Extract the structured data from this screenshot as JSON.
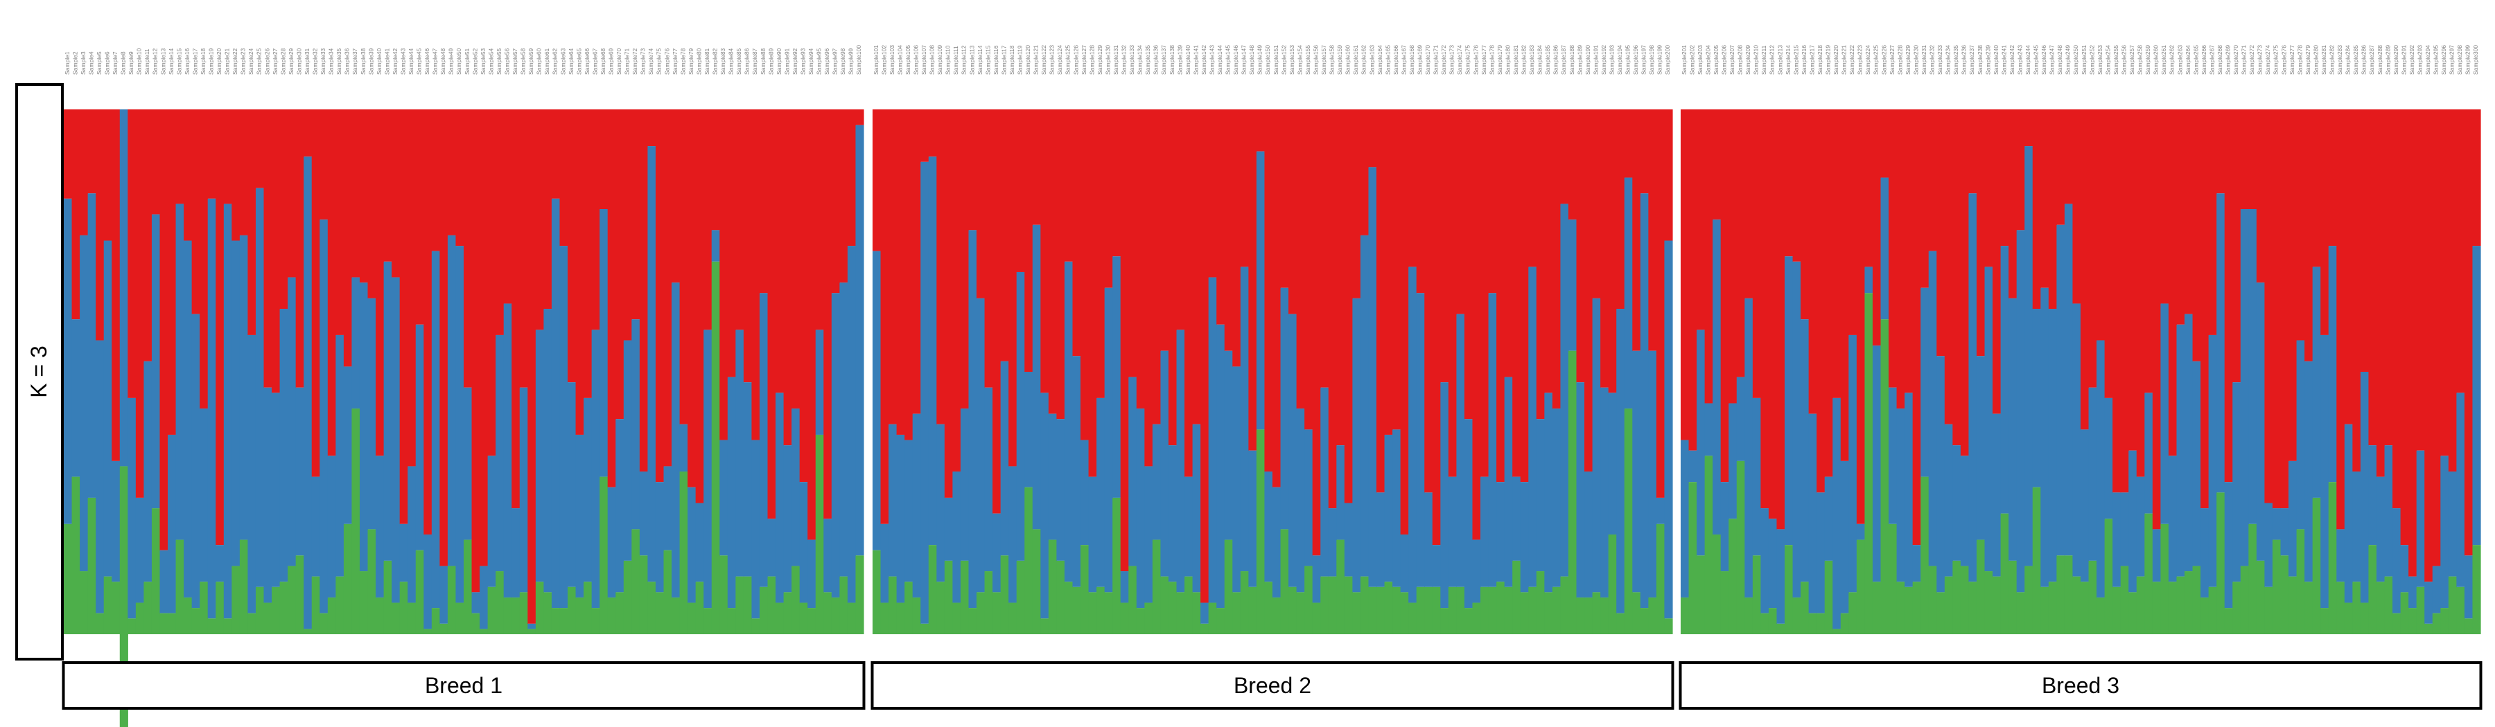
{
  "chart_data": {
    "type": "bar",
    "stacked": true,
    "row_label": "K = 3",
    "ylim": [
      0,
      1
    ],
    "grid": false,
    "components": [
      {
        "name": "",
        "color": "#4DAF4A"
      },
      {
        "name": "",
        "color": "#377EB8"
      },
      {
        "name": "",
        "color": "#E41A1C"
      }
    ],
    "panels": [
      {
        "label": "Breed 1",
        "samples": [
          "Sample1",
          "Sample2",
          "Sample3",
          "Sample4",
          "Sample5",
          "Sample6",
          "Sample7",
          "Sample8",
          "Sample9",
          "Sample10",
          "Sample11",
          "Sample12",
          "Sample13",
          "Sample14",
          "Sample15",
          "Sample16",
          "Sample17",
          "Sample18",
          "Sample19",
          "Sample20",
          "Sample21",
          "Sample22",
          "Sample23",
          "Sample24",
          "Sample25",
          "Sample26",
          "Sample27",
          "Sample28",
          "Sample29",
          "Sample30",
          "Sample31",
          "Sample32",
          "Sample33",
          "Sample34",
          "Sample35",
          "Sample36",
          "Sample37",
          "Sample38",
          "Sample39",
          "Sample40",
          "Sample41",
          "Sample42",
          "Sample43",
          "Sample44",
          "Sample45",
          "Sample46",
          "Sample47",
          "Sample48",
          "Sample49",
          "Sample50",
          "Sample51",
          "Sample52",
          "Sample53",
          "Sample54",
          "Sample55",
          "Sample56",
          "Sample57",
          "Sample58",
          "Sample59",
          "Sample60",
          "Sample61",
          "Sample62",
          "Sample63",
          "Sample64",
          "Sample65",
          "Sample66",
          "Sample67",
          "Sample68",
          "Sample69",
          "Sample70",
          "Sample71",
          "Sample72",
          "Sample73",
          "Sample74",
          "Sample75",
          "Sample76",
          "Sample77",
          "Sample78",
          "Sample79",
          "Sample80",
          "Sample81",
          "Sample82",
          "Sample83",
          "Sample84",
          "Sample85",
          "Sample86",
          "Sample87",
          "Sample88",
          "Sample89",
          "Sample90",
          "Sample91",
          "Sample92",
          "Sample93",
          "Sample94",
          "Sample95",
          "Sample96",
          "Sample97",
          "Sample98",
          "Sample99",
          "Sample100"
        ],
        "green": [
          0.21,
          0.3,
          0.12,
          0.26,
          0.04,
          0.11,
          0.1,
          0.55,
          0.03,
          0.06,
          0.1,
          0.24,
          0.04,
          0.04,
          0.18,
          0.07,
          0.05,
          0.1,
          0.03,
          0.1,
          0.03,
          0.13,
          0.18,
          0.04,
          0.09,
          0.06,
          0.09,
          0.1,
          0.13,
          0.15,
          0.01,
          0.11,
          0.04,
          0.07,
          0.11,
          0.21,
          0.43,
          0.12,
          0.2,
          0.07,
          0.14,
          0.06,
          0.1,
          0.06,
          0.16,
          0.01,
          0.05,
          0.02,
          0.13,
          0.06,
          0.18,
          0.04,
          0.01,
          0.09,
          0.12,
          0.07,
          0.07,
          0.08,
          0.01,
          0.1,
          0.08,
          0.05,
          0.05,
          0.09,
          0.07,
          0.1,
          0.05,
          0.3,
          0.07,
          0.08,
          0.14,
          0.2,
          0.15,
          0.1,
          0.08,
          0.16,
          0.07,
          0.31,
          0.06,
          0.1,
          0.05,
          0.71,
          0.15,
          0.05,
          0.11,
          0.11,
          0.03,
          0.09,
          0.11,
          0.06,
          0.08,
          0.13,
          0.06,
          0.05,
          0.38,
          0.08,
          0.07,
          0.11,
          0.06,
          0.15
        ],
        "blue": [
          0.62,
          0.3,
          0.64,
          0.58,
          0.52,
          0.64,
          0.23,
          0.68,
          0.42,
          0.2,
          0.42,
          0.56,
          0.12,
          0.34,
          0.64,
          0.68,
          0.56,
          0.33,
          0.8,
          0.07,
          0.79,
          0.62,
          0.58,
          0.53,
          0.76,
          0.41,
          0.37,
          0.52,
          0.55,
          0.32,
          0.9,
          0.19,
          0.75,
          0.27,
          0.46,
          0.3,
          0.25,
          0.55,
          0.44,
          0.27,
          0.57,
          0.62,
          0.11,
          0.26,
          0.43,
          0.18,
          0.68,
          0.11,
          0.63,
          0.68,
          0.29,
          0.04,
          0.12,
          0.25,
          0.45,
          0.56,
          0.17,
          0.39,
          0.01,
          0.48,
          0.54,
          0.78,
          0.69,
          0.39,
          0.31,
          0.35,
          0.53,
          0.51,
          0.21,
          0.33,
          0.42,
          0.4,
          0.16,
          0.83,
          0.21,
          0.16,
          0.6,
          0.09,
          0.22,
          0.15,
          0.53,
          0.06,
          0.22,
          0.44,
          0.47,
          0.37,
          0.34,
          0.56,
          0.11,
          0.4,
          0.28,
          0.3,
          0.23,
          0.13,
          0.2,
          0.14,
          0.58,
          0.56,
          0.68,
          0.82
        ]
      },
      {
        "label": "Breed 2",
        "samples": [
          "Sample101",
          "Sample102",
          "Sample103",
          "Sample104",
          "Sample105",
          "Sample106",
          "Sample107",
          "Sample108",
          "Sample109",
          "Sample110",
          "Sample111",
          "Sample112",
          "Sample113",
          "Sample114",
          "Sample115",
          "Sample116",
          "Sample117",
          "Sample118",
          "Sample119",
          "Sample120",
          "Sample121",
          "Sample122",
          "Sample123",
          "Sample124",
          "Sample125",
          "Sample126",
          "Sample127",
          "Sample128",
          "Sample129",
          "Sample130",
          "Sample131",
          "Sample132",
          "Sample133",
          "Sample134",
          "Sample135",
          "Sample136",
          "Sample137",
          "Sample138",
          "Sample139",
          "Sample140",
          "Sample141",
          "Sample142",
          "Sample143",
          "Sample144",
          "Sample145",
          "Sample146",
          "Sample147",
          "Sample148",
          "Sample149",
          "Sample150",
          "Sample151",
          "Sample152",
          "Sample153",
          "Sample154",
          "Sample155",
          "Sample156",
          "Sample157",
          "Sample158",
          "Sample159",
          "Sample160",
          "Sample161",
          "Sample162",
          "Sample163",
          "Sample164",
          "Sample165",
          "Sample166",
          "Sample167",
          "Sample168",
          "Sample169",
          "Sample170",
          "Sample171",
          "Sample172",
          "Sample173",
          "Sample174",
          "Sample175",
          "Sample176",
          "Sample177",
          "Sample178",
          "Sample179",
          "Sample180",
          "Sample181",
          "Sample182",
          "Sample183",
          "Sample184",
          "Sample185",
          "Sample186",
          "Sample187",
          "Sample188",
          "Sample189",
          "Sample190",
          "Sample191",
          "Sample192",
          "Sample193",
          "Sample194",
          "Sample195",
          "Sample196",
          "Sample197",
          "Sample198",
          "Sample199",
          "Sample200"
        ],
        "green": [
          0.16,
          0.06,
          0.11,
          0.06,
          0.1,
          0.07,
          0.02,
          0.17,
          0.1,
          0.14,
          0.06,
          0.14,
          0.05,
          0.08,
          0.12,
          0.08,
          0.15,
          0.06,
          0.14,
          0.28,
          0.2,
          0.03,
          0.18,
          0.14,
          0.1,
          0.09,
          0.17,
          0.08,
          0.09,
          0.08,
          0.26,
          0.06,
          0.13,
          0.05,
          0.06,
          0.18,
          0.11,
          0.1,
          0.08,
          0.11,
          0.08,
          0.02,
          0.06,
          0.05,
          0.18,
          0.08,
          0.12,
          0.09,
          0.39,
          0.1,
          0.07,
          0.2,
          0.09,
          0.08,
          0.13,
          0.06,
          0.11,
          0.11,
          0.18,
          0.11,
          0.08,
          0.11,
          0.09,
          0.09,
          0.1,
          0.09,
          0.08,
          0.06,
          0.09,
          0.09,
          0.09,
          0.05,
          0.09,
          0.09,
          0.05,
          0.06,
          0.09,
          0.09,
          0.1,
          0.09,
          0.14,
          0.08,
          0.09,
          0.12,
          0.08,
          0.09,
          0.11,
          0.54,
          0.07,
          0.07,
          0.08,
          0.07,
          0.19,
          0.04,
          0.43,
          0.08,
          0.05,
          0.07,
          0.21,
          0.03
        ],
        "blue": [
          0.57,
          0.15,
          0.29,
          0.32,
          0.27,
          0.35,
          0.88,
          0.74,
          0.3,
          0.12,
          0.25,
          0.29,
          0.72,
          0.56,
          0.35,
          0.15,
          0.37,
          0.26,
          0.55,
          0.22,
          0.58,
          0.43,
          0.24,
          0.27,
          0.61,
          0.44,
          0.2,
          0.22,
          0.36,
          0.58,
          0.46,
          0.06,
          0.36,
          0.38,
          0.26,
          0.22,
          0.43,
          0.26,
          0.5,
          0.19,
          0.32,
          0.04,
          0.62,
          0.54,
          0.36,
          0.43,
          0.58,
          0.26,
          0.53,
          0.21,
          0.21,
          0.46,
          0.52,
          0.35,
          0.26,
          0.09,
          0.36,
          0.13,
          0.18,
          0.14,
          0.56,
          0.65,
          0.8,
          0.18,
          0.28,
          0.3,
          0.11,
          0.64,
          0.56,
          0.18,
          0.08,
          0.43,
          0.21,
          0.52,
          0.36,
          0.12,
          0.21,
          0.56,
          0.19,
          0.4,
          0.16,
          0.21,
          0.61,
          0.29,
          0.38,
          0.34,
          0.71,
          0.25,
          0.41,
          0.24,
          0.56,
          0.4,
          0.27,
          0.58,
          0.44,
          0.46,
          0.79,
          0.47,
          0.05,
          0.72
        ]
      },
      {
        "label": "Breed 3",
        "samples": [
          "Sample201",
          "Sample202",
          "Sample203",
          "Sample204",
          "Sample205",
          "Sample206",
          "Sample207",
          "Sample208",
          "Sample209",
          "Sample210",
          "Sample211",
          "Sample212",
          "Sample213",
          "Sample214",
          "Sample215",
          "Sample216",
          "Sample217",
          "Sample218",
          "Sample219",
          "Sample220",
          "Sample221",
          "Sample222",
          "Sample223",
          "Sample224",
          "Sample225",
          "Sample226",
          "Sample227",
          "Sample228",
          "Sample229",
          "Sample230",
          "Sample231",
          "Sample232",
          "Sample233",
          "Sample234",
          "Sample235",
          "Sample236",
          "Sample237",
          "Sample238",
          "Sample239",
          "Sample240",
          "Sample241",
          "Sample242",
          "Sample243",
          "Sample244",
          "Sample245",
          "Sample246",
          "Sample247",
          "Sample248",
          "Sample249",
          "Sample250",
          "Sample251",
          "Sample252",
          "Sample253",
          "Sample254",
          "Sample255",
          "Sample256",
          "Sample257",
          "Sample258",
          "Sample259",
          "Sample260",
          "Sample261",
          "Sample262",
          "Sample263",
          "Sample264",
          "Sample265",
          "Sample266",
          "Sample267",
          "Sample268",
          "Sample269",
          "Sample270",
          "Sample271",
          "Sample272",
          "Sample273",
          "Sample274",
          "Sample275",
          "Sample276",
          "Sample277",
          "Sample278",
          "Sample279",
          "Sample280",
          "Sample281",
          "Sample282",
          "Sample283",
          "Sample284",
          "Sample285",
          "Sample286",
          "Sample287",
          "Sample288",
          "Sample289",
          "Sample290",
          "Sample291",
          "Sample292",
          "Sample293",
          "Sample294",
          "Sample295",
          "Sample296",
          "Sample297",
          "Sample298",
          "Sample299",
          "Sample300"
        ],
        "green": [
          0.07,
          0.29,
          0.15,
          0.34,
          0.19,
          0.12,
          0.22,
          0.33,
          0.07,
          0.15,
          0.04,
          0.05,
          0.02,
          0.17,
          0.07,
          0.1,
          0.04,
          0.04,
          0.14,
          0.01,
          0.04,
          0.08,
          0.18,
          0.65,
          0.1,
          0.6,
          0.21,
          0.1,
          0.09,
          0.1,
          0.3,
          0.13,
          0.08,
          0.11,
          0.14,
          0.13,
          0.1,
          0.18,
          0.12,
          0.11,
          0.23,
          0.14,
          0.08,
          0.13,
          0.28,
          0.09,
          0.1,
          0.15,
          0.15,
          0.11,
          0.1,
          0.14,
          0.07,
          0.22,
          0.09,
          0.13,
          0.08,
          0.11,
          0.23,
          0.1,
          0.21,
          0.1,
          0.11,
          0.12,
          0.13,
          0.07,
          0.09,
          0.27,
          0.05,
          0.1,
          0.13,
          0.21,
          0.14,
          0.09,
          0.18,
          0.15,
          0.11,
          0.2,
          0.1,
          0.26,
          0.05,
          0.29,
          0.1,
          0.06,
          0.1,
          0.06,
          0.17,
          0.1,
          0.11,
          0.04,
          0.08,
          0.05,
          0.09,
          0.02,
          0.04,
          0.05,
          0.11,
          0.09,
          0.03,
          0.17
        ],
        "blue": [
          0.3,
          0.06,
          0.43,
          0.1,
          0.6,
          0.17,
          0.22,
          0.16,
          0.57,
          0.3,
          0.2,
          0.17,
          0.18,
          0.55,
          0.64,
          0.5,
          0.38,
          0.23,
          0.16,
          0.44,
          0.29,
          0.49,
          0.03,
          0.05,
          0.45,
          0.27,
          0.26,
          0.33,
          0.37,
          0.07,
          0.36,
          0.6,
          0.45,
          0.29,
          0.22,
          0.21,
          0.74,
          0.35,
          0.58,
          0.31,
          0.51,
          0.5,
          0.69,
          0.8,
          0.34,
          0.57,
          0.52,
          0.63,
          0.67,
          0.52,
          0.29,
          0.33,
          0.49,
          0.23,
          0.18,
          0.14,
          0.27,
          0.19,
          0.23,
          0.1,
          0.42,
          0.24,
          0.48,
          0.49,
          0.39,
          0.17,
          0.48,
          0.57,
          0.24,
          0.38,
          0.68,
          0.6,
          0.53,
          0.16,
          0.06,
          0.09,
          0.22,
          0.36,
          0.42,
          0.44,
          0.52,
          0.45,
          0.1,
          0.34,
          0.21,
          0.44,
          0.19,
          0.2,
          0.25,
          0.2,
          0.09,
          0.06,
          0.26,
          0.08,
          0.09,
          0.29,
          0.2,
          0.37,
          0.12,
          0.57
        ]
      }
    ]
  }
}
